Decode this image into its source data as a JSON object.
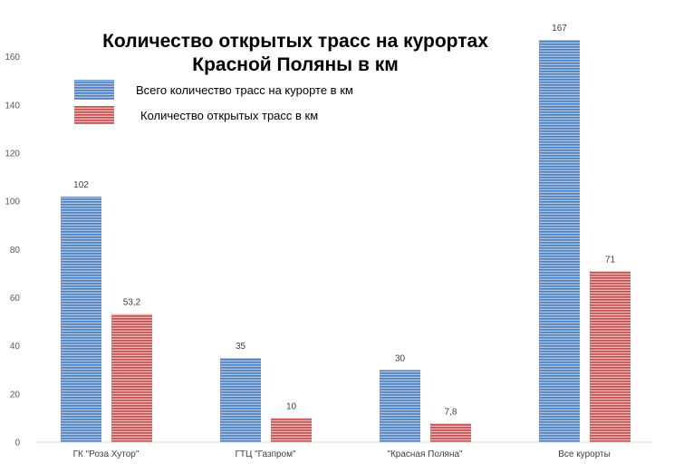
{
  "chart_data": {
    "type": "bar",
    "title_lines": [
      "Количество открытых трасс на курортах",
      "Красной Поляны в км"
    ],
    "categories": [
      "ГК \"Роза Хутор\"",
      "ГТЦ \"Газпром\"",
      "\"Красная Поляна\"",
      "Все курорты"
    ],
    "series": [
      {
        "name": "Всего количество трасс на курорте в км",
        "color": "#4f81bd",
        "values": [
          102,
          35,
          30,
          167
        ],
        "labels": [
          "102",
          "35",
          "30",
          "167"
        ]
      },
      {
        "name": "Количество открытых трасс в км",
        "color": "#c0504d",
        "values": [
          53.2,
          10,
          7.8,
          71
        ],
        "labels": [
          "53,2",
          "10",
          "7,8",
          "71"
        ]
      }
    ],
    "ylim": [
      0,
      180
    ],
    "yticks": [
      0,
      20,
      40,
      60,
      80,
      100,
      120,
      140,
      160
    ],
    "xlabel": "",
    "ylabel": "",
    "grid": false,
    "legend_position": "top-left"
  }
}
